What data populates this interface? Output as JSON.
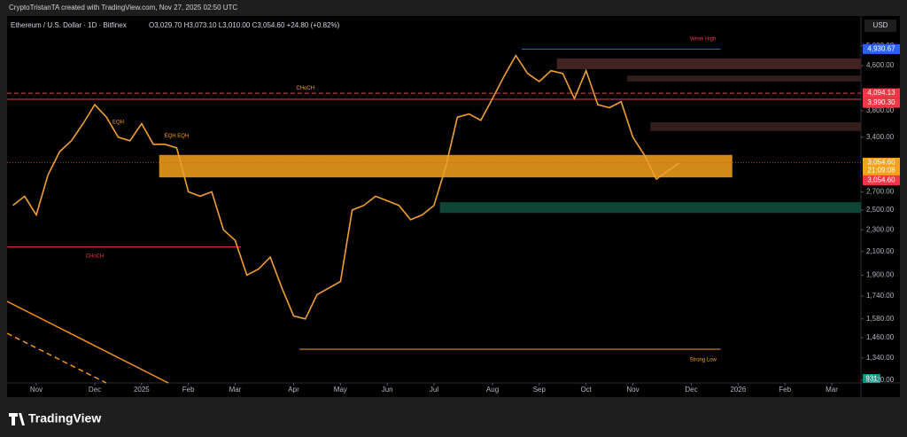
{
  "header": {
    "credit": "CryptoTristanTA created with TradingView.com, Nov 27, 2025 02:50 UTC",
    "symbol": "Ethereum / U.S. Dollar · 1D · Bitfinex",
    "ohlc": "O3,029.70 H3,073.10 L3,010.00 C3,054.60 +24.80 (+0.82%)",
    "currency": "USD"
  },
  "footer": {
    "logo": "TradingView"
  },
  "chart_data": {
    "type": "line",
    "log": true,
    "grid": false,
    "categories": [
      null,
      null,
      "Nov",
      null,
      null,
      null,
      null,
      "Dec",
      null,
      null,
      null,
      "2025",
      null,
      null,
      null,
      "Feb",
      null,
      null,
      null,
      "Mar",
      null,
      null,
      null,
      null,
      "Apr",
      null,
      null,
      null,
      "May",
      null,
      null,
      null,
      "Jun",
      null,
      null,
      null,
      "Jul",
      null,
      null,
      null,
      null,
      "Aug",
      null,
      null,
      null,
      "Sep",
      null,
      null,
      null,
      "Oct",
      null,
      null,
      null,
      "Nov",
      null,
      null,
      null,
      null,
      "Dec",
      null,
      null,
      null,
      "2026",
      null,
      null,
      null,
      "Feb",
      null,
      null,
      null,
      "Mar",
      null,
      null
    ],
    "series": [
      {
        "color": "#f0a030",
        "values": [
          2550,
          2650,
          2450,
          2900,
          3200,
          3350,
          3600,
          3900,
          3700,
          3400,
          3350,
          3600,
          3300,
          3300,
          3250,
          2700,
          2650,
          2700,
          2300,
          2200,
          1900,
          1950,
          2050,
          1800,
          1600,
          1580,
          1750,
          1800,
          1850,
          2500,
          2550,
          2650,
          2600,
          2550,
          2400,
          2450,
          2550,
          3000,
          3700,
          3750,
          3650,
          4000,
          4400,
          4800,
          4450,
          4300,
          4500,
          4450,
          4000,
          4500,
          3900,
          3850,
          3950,
          3400,
          3150,
          2850,
          2950,
          3054.6,
          null,
          null,
          null,
          null,
          null,
          null,
          null,
          null,
          null,
          null,
          null,
          null,
          null,
          null,
          null
        ]
      }
    ],
    "ylim": [
      1206,
      5628
    ],
    "yticks": [
      {
        "value": 5000,
        "label": "5,000.00"
      },
      {
        "value": 4600,
        "label": "4,600.00"
      },
      {
        "value": 3800,
        "label": "3,800.00"
      },
      {
        "value": 3400,
        "label": "3,400.00"
      },
      {
        "value": 2700,
        "label": "2,700.00"
      },
      {
        "value": 2500,
        "label": "2,500.00"
      },
      {
        "value": 2300,
        "label": "2,300.00"
      },
      {
        "value": 2100,
        "label": "2,100.00"
      },
      {
        "value": 1900,
        "label": "1,900.00"
      },
      {
        "value": 1740,
        "label": "1,740.00"
      },
      {
        "value": 1580,
        "label": "1,580.00"
      },
      {
        "value": 1460,
        "label": "1,460.00"
      },
      {
        "value": 1340,
        "label": "1,340.00"
      },
      {
        "value": 1220,
        "label": "1,220.00"
      }
    ],
    "zones": [
      {
        "top": 3155,
        "bottom": 2870,
        "start": 13,
        "end": 61,
        "color": "#f7a21b"
      },
      {
        "top": 2585,
        "bottom": 2470,
        "start": 37,
        "end": 72,
        "color": "#0f4d3b"
      },
      {
        "top": 4740,
        "bottom": 4530,
        "start": 47,
        "end": 72,
        "color": "#4a2626"
      },
      {
        "top": 4410,
        "bottom": 4300,
        "start": 53,
        "end": 72,
        "color": "#3a2020"
      },
      {
        "top": 3620,
        "bottom": 3490,
        "start": 55,
        "end": 72,
        "color": "#3a2020"
      }
    ],
    "levels": [
      {
        "value": 4094.13,
        "start": 0,
        "end": 72,
        "color": "#f23645",
        "dash": true
      },
      {
        "value": 3990.3,
        "start": 0,
        "end": 72,
        "color": "#f23645",
        "dash": false
      },
      {
        "value": 4930.67,
        "start": 44,
        "end": 60,
        "color": "#2962ff",
        "dash": false
      },
      {
        "value": 1390,
        "start": 25,
        "end": 60,
        "color": "#f7a21b",
        "dash": false
      },
      {
        "value": 2140,
        "start": 0,
        "end": 19,
        "color": "#f23645",
        "dash": false
      }
    ],
    "annotations": [
      {
        "text": "CHoCH",
        "index": 25,
        "value": 4180,
        "color": "#f7a21b"
      },
      {
        "text": "CHoCH",
        "index": 7,
        "value": 2060,
        "color": "#f23645"
      },
      {
        "text": "Weak High",
        "index": 59,
        "value": 5150,
        "color": "#f23645"
      },
      {
        "text": "Strong Low",
        "index": 59,
        "value": 1330,
        "color": "#f7a21b"
      },
      {
        "text": "EQH",
        "index": 9,
        "value": 3620,
        "color": "#f7a21b"
      },
      {
        "text": "EQH EQH",
        "index": 14,
        "value": 3420,
        "color": "#f7a21b"
      }
    ],
    "price_labels": [
      {
        "value": 4930.67,
        "label": "4,930.67",
        "color": "#2962ff"
      },
      {
        "value": 4094.13,
        "label": "4,094.13",
        "color": "#f23645"
      },
      {
        "value": 3990.3,
        "label": "3,990.30",
        "color": "#f23645"
      },
      {
        "value": 3054.6,
        "label": "3,054.60",
        "color": "#f7a21b",
        "sub": "21:09:08"
      },
      {
        "value": 3054.6,
        "label": "3,054.60",
        "color": "#f23645"
      }
    ],
    "volume_label": "931"
  }
}
